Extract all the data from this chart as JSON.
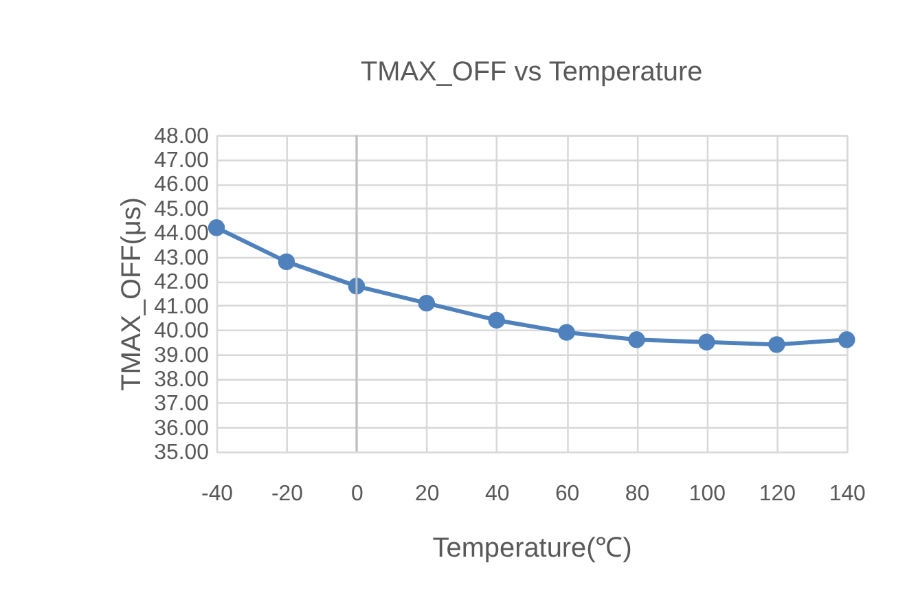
{
  "chart_data": {
    "type": "line",
    "title": "TMAX_OFF vs Temperature",
    "xlabel": "Temperature(℃)",
    "ylabel": "TMAX_OFF(μs)",
    "x": [
      -40,
      -20,
      0,
      20,
      40,
      60,
      80,
      100,
      120,
      140
    ],
    "series": [
      {
        "color": "#4f81bd",
        "values": [
          44.2,
          42.8,
          41.8,
          41.1,
          40.4,
          39.9,
          39.6,
          39.5,
          39.4,
          39.6
        ]
      }
    ],
    "xlim": [
      -40,
      140
    ],
    "xticks": [
      -40,
      -20,
      0,
      20,
      40,
      60,
      80,
      100,
      120,
      140
    ],
    "ylim": [
      35,
      48
    ],
    "yticks": [
      {
        "value": 35,
        "label": "35.00"
      },
      {
        "value": 36,
        "label": "36.00"
      },
      {
        "value": 37,
        "label": "37.00"
      },
      {
        "value": 38,
        "label": "38.00"
      },
      {
        "value": 39,
        "label": "39.00"
      },
      {
        "value": 40,
        "label": "40.00"
      },
      {
        "value": 41,
        "label": "41.00"
      },
      {
        "value": 42,
        "label": "42.00"
      },
      {
        "value": 43,
        "label": "43.00"
      },
      {
        "value": 44,
        "label": "44.00"
      },
      {
        "value": 45,
        "label": "45.00"
      },
      {
        "value": 46,
        "label": "46.00"
      },
      {
        "value": 47,
        "label": "47.00"
      },
      {
        "value": 48,
        "label": "48.00"
      }
    ],
    "ref_lines": [
      {
        "axis": "x",
        "value": 0,
        "color": "#bfbfbf"
      }
    ],
    "grid": true,
    "marker": "circle",
    "line_style": "solid"
  }
}
